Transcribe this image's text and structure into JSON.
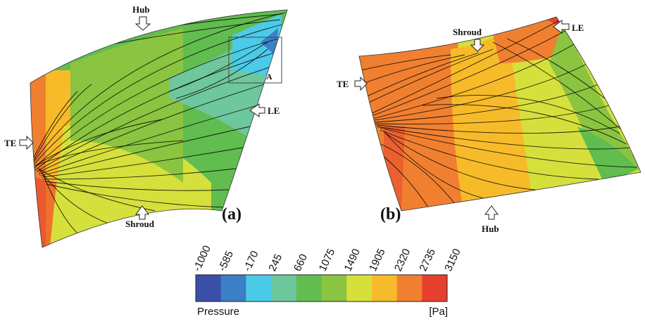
{
  "panels": [
    {
      "id": "a",
      "label": "(a)",
      "callouts": {
        "hub": "Hub",
        "le": "LE",
        "te": "TE",
        "shroud": "Shroud"
      },
      "zoom_label": "A"
    },
    {
      "id": "b",
      "label": "(b)",
      "callouts": {
        "hub": "Hub",
        "le": "LE",
        "te": "TE",
        "shroud": "Shroud"
      }
    }
  ],
  "colorbar": {
    "title": "Pressure",
    "unit": "[Pa]",
    "ticks": [
      "-1000",
      "-585",
      "-170",
      "245",
      "660",
      "1075",
      "1490",
      "1905",
      "2320",
      "2735",
      "3150"
    ],
    "colors": [
      "#3a4fa8",
      "#3b7fc6",
      "#4ccbe8",
      "#6fc79e",
      "#61bd4f",
      "#8ac440",
      "#d6e03c",
      "#f7bb2a",
      "#f08030",
      "#e8402e"
    ]
  }
}
